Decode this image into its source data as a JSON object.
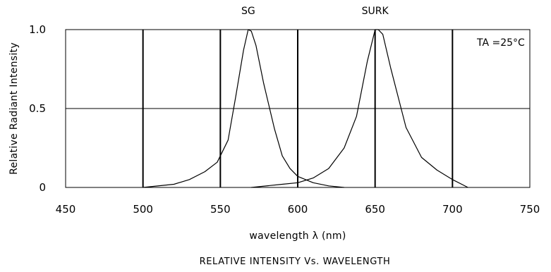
{
  "chart_data": {
    "type": "line",
    "title": "",
    "caption": "RELATIVE INTENSITY Vs. WAVELENGTH",
    "xlabel": "wavelength λ (nm)",
    "ylabel": "Relative Radiant Intensity",
    "xlim": [
      450,
      750
    ],
    "ylim": [
      0,
      1.0
    ],
    "x_ticks": [
      "450",
      "500",
      "550",
      "600",
      "650",
      "700",
      "750"
    ],
    "y_ticks": [
      "0",
      "0.5",
      "1.0"
    ],
    "grid": {
      "vertical_major": true,
      "horizontal_at": [
        0.5
      ]
    },
    "annotation": "TA =25°C",
    "series": [
      {
        "name": "SG",
        "x": [
          500,
          520,
          530,
          540,
          548,
          555,
          560,
          565,
          568,
          570,
          573,
          578,
          585,
          590,
          595,
          600,
          610,
          620,
          630
        ],
        "y": [
          0.0,
          0.02,
          0.05,
          0.1,
          0.16,
          0.3,
          0.58,
          0.87,
          1.0,
          0.99,
          0.9,
          0.66,
          0.37,
          0.2,
          0.12,
          0.07,
          0.03,
          0.01,
          0.0
        ]
      },
      {
        "name": "SURK",
        "x": [
          570,
          590,
          600,
          610,
          620,
          630,
          638,
          645,
          650,
          652,
          655,
          660,
          670,
          680,
          690,
          700,
          710
        ],
        "y": [
          0.0,
          0.02,
          0.03,
          0.06,
          0.12,
          0.25,
          0.45,
          0.8,
          1.0,
          1.0,
          0.97,
          0.76,
          0.38,
          0.19,
          0.11,
          0.05,
          0.0
        ]
      }
    ]
  }
}
